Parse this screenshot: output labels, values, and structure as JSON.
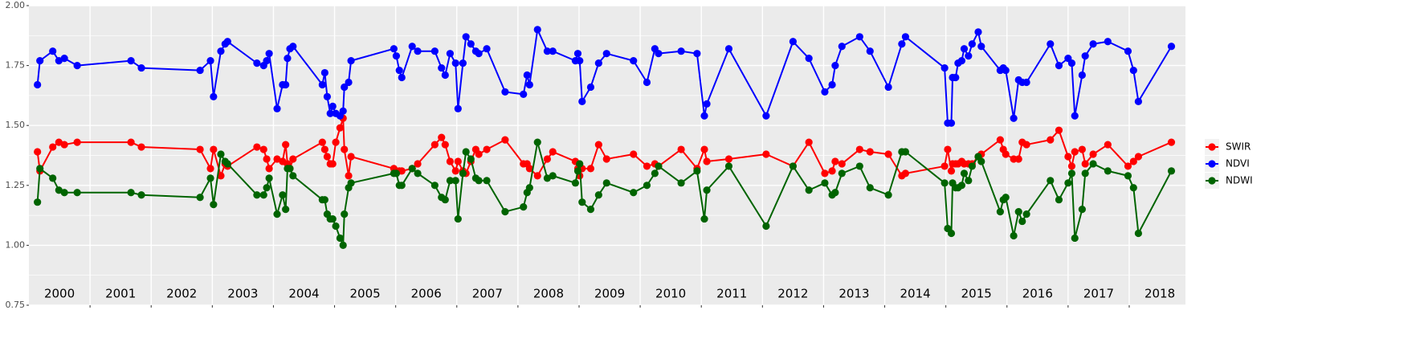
{
  "chart_data": {
    "type": "line",
    "x": [
      2000.14,
      2000.18,
      2000.39,
      2000.49,
      2000.58,
      2000.79,
      2001.67,
      2001.84,
      2002.8,
      2002.97,
      2003.02,
      2003.14,
      2003.21,
      2003.25,
      2003.73,
      2003.84,
      2003.89,
      2003.93,
      2004.06,
      2004.15,
      2004.2,
      2004.23,
      2004.27,
      2004.32,
      2004.8,
      2004.84,
      2004.88,
      2004.93,
      2004.97,
      2005.02,
      2005.09,
      2005.14,
      2005.16,
      2005.23,
      2005.27,
      2005.97,
      2006.01,
      2006.06,
      2006.1,
      2006.27,
      2006.36,
      2006.64,
      2006.75,
      2006.81,
      2006.89,
      2006.98,
      2007.02,
      2007.1,
      2007.15,
      2007.23,
      2007.31,
      2007.36,
      2007.49,
      2007.79,
      2008.09,
      2008.15,
      2008.19,
      2008.32,
      2008.48,
      2008.57,
      2008.94,
      2008.98,
      2009.01,
      2009.05,
      2009.19,
      2009.32,
      2009.45,
      2009.89,
      2010.11,
      2010.24,
      2010.3,
      2010.67,
      2010.93,
      2011.05,
      2011.09,
      2011.45,
      2012.06,
      2012.5,
      2012.76,
      2013.02,
      2013.14,
      2013.19,
      2013.3,
      2013.59,
      2013.76,
      2014.06,
      2014.28,
      2014.34,
      2014.98,
      2015.03,
      2015.09,
      2015.11,
      2015.16,
      2015.2,
      2015.26,
      2015.3,
      2015.37,
      2015.43,
      2015.53,
      2015.58,
      2015.89,
      2015.94,
      2015.98,
      2016.11,
      2016.19,
      2016.25,
      2016.32,
      2016.71,
      2016.85,
      2017.0,
      2017.06,
      2017.11,
      2017.23,
      2017.28,
      2017.41,
      2017.65,
      2017.98,
      2018.07,
      2018.15,
      2018.69
    ],
    "series": [
      {
        "name": "SWIR",
        "color": "#ff0000",
        "values": [
          1.39,
          1.31,
          1.41,
          1.43,
          1.42,
          1.43,
          1.43,
          1.41,
          1.4,
          1.32,
          1.4,
          1.29,
          1.34,
          1.33,
          1.41,
          1.4,
          1.36,
          1.32,
          1.36,
          1.35,
          1.42,
          1.34,
          1.32,
          1.36,
          1.43,
          1.4,
          1.37,
          1.34,
          1.34,
          1.43,
          1.49,
          1.53,
          1.4,
          1.29,
          1.37,
          1.32,
          1.31,
          1.31,
          1.31,
          1.32,
          1.34,
          1.42,
          1.45,
          1.42,
          1.35,
          1.31,
          1.35,
          1.31,
          1.3,
          1.35,
          1.4,
          1.38,
          1.4,
          1.44,
          1.34,
          1.34,
          1.32,
          1.29,
          1.36,
          1.39,
          1.35,
          1.32,
          1.29,
          1.32,
          1.32,
          1.42,
          1.36,
          1.38,
          1.33,
          1.34,
          1.33,
          1.4,
          1.32,
          1.4,
          1.35,
          1.36,
          1.38,
          1.33,
          1.43,
          1.3,
          1.31,
          1.35,
          1.34,
          1.4,
          1.39,
          1.38,
          1.29,
          1.3,
          1.33,
          1.4,
          1.31,
          1.34,
          1.34,
          1.34,
          1.35,
          1.34,
          1.34,
          1.34,
          1.37,
          1.38,
          1.44,
          1.4,
          1.38,
          1.36,
          1.36,
          1.43,
          1.42,
          1.44,
          1.48,
          1.37,
          1.33,
          1.39,
          1.4,
          1.34,
          1.38,
          1.42,
          1.33,
          1.35,
          1.37,
          1.43
        ]
      },
      {
        "name": "NDVI",
        "color": "#0000ff",
        "values": [
          1.67,
          1.77,
          1.81,
          1.77,
          1.78,
          1.75,
          1.77,
          1.74,
          1.73,
          1.77,
          1.62,
          1.81,
          1.84,
          1.85,
          1.76,
          1.75,
          1.77,
          1.8,
          1.57,
          1.67,
          1.67,
          1.78,
          1.82,
          1.83,
          1.67,
          1.72,
          1.62,
          1.55,
          1.58,
          1.55,
          1.54,
          1.56,
          1.66,
          1.68,
          1.77,
          1.82,
          1.79,
          1.73,
          1.7,
          1.83,
          1.81,
          1.81,
          1.74,
          1.71,
          1.8,
          1.76,
          1.57,
          1.76,
          1.87,
          1.84,
          1.81,
          1.8,
          1.82,
          1.64,
          1.63,
          1.71,
          1.67,
          1.9,
          1.81,
          1.81,
          1.77,
          1.8,
          1.77,
          1.6,
          1.66,
          1.76,
          1.8,
          1.77,
          1.68,
          1.82,
          1.8,
          1.81,
          1.8,
          1.54,
          1.59,
          1.82,
          1.54,
          1.85,
          1.78,
          1.64,
          1.67,
          1.75,
          1.83,
          1.87,
          1.81,
          1.66,
          1.84,
          1.87,
          1.74,
          1.51,
          1.51,
          1.7,
          1.7,
          1.76,
          1.77,
          1.82,
          1.79,
          1.84,
          1.89,
          1.83,
          1.73,
          1.74,
          1.73,
          1.53,
          1.69,
          1.68,
          1.68,
          1.84,
          1.75,
          1.78,
          1.76,
          1.54,
          1.71,
          1.79,
          1.84,
          1.85,
          1.81,
          1.73,
          1.6,
          1.83
        ]
      },
      {
        "name": "NDWI",
        "color": "#006400",
        "values": [
          1.18,
          1.32,
          1.28,
          1.23,
          1.22,
          1.22,
          1.22,
          1.21,
          1.2,
          1.28,
          1.17,
          1.38,
          1.35,
          1.34,
          1.21,
          1.21,
          1.24,
          1.28,
          1.13,
          1.21,
          1.15,
          1.32,
          1.32,
          1.29,
          1.19,
          1.19,
          1.13,
          1.11,
          1.11,
          1.08,
          1.03,
          1.0,
          1.13,
          1.24,
          1.26,
          1.3,
          1.3,
          1.25,
          1.25,
          1.32,
          1.3,
          1.25,
          1.2,
          1.19,
          1.27,
          1.27,
          1.11,
          1.3,
          1.39,
          1.36,
          1.28,
          1.27,
          1.27,
          1.14,
          1.16,
          1.22,
          1.24,
          1.43,
          1.28,
          1.29,
          1.26,
          1.31,
          1.34,
          1.18,
          1.15,
          1.21,
          1.26,
          1.22,
          1.25,
          1.3,
          1.33,
          1.26,
          1.31,
          1.11,
          1.23,
          1.33,
          1.08,
          1.33,
          1.23,
          1.26,
          1.21,
          1.22,
          1.3,
          1.33,
          1.24,
          1.21,
          1.39,
          1.39,
          1.26,
          1.07,
          1.05,
          1.26,
          1.24,
          1.24,
          1.25,
          1.3,
          1.27,
          1.33,
          1.37,
          1.35,
          1.14,
          1.19,
          1.2,
          1.04,
          1.14,
          1.1,
          1.13,
          1.27,
          1.19,
          1.26,
          1.3,
          1.03,
          1.15,
          1.3,
          1.34,
          1.31,
          1.29,
          1.24,
          1.05,
          1.31
        ]
      }
    ],
    "xlim": [
      2000,
      2018.92
    ],
    "xticks": [
      2001,
      2002,
      2003,
      2004,
      2005,
      2006,
      2007,
      2008,
      2009,
      2010,
      2011,
      2012,
      2013,
      2014,
      2015,
      2016,
      2017,
      2018
    ],
    "year_labels": [
      2000,
      2001,
      2002,
      2003,
      2004,
      2005,
      2006,
      2007,
      2008,
      2009,
      2010,
      2011,
      2012,
      2013,
      2014,
      2015,
      2016,
      2017,
      2018
    ],
    "ylim": [
      0.75,
      2.0
    ],
    "yticks": [
      0.75,
      {
        "value": 1.0,
        "label": "1.00"
      },
      1.25,
      {
        "value": 1.5,
        "label": "1.50"
      },
      1.75,
      {
        "value": 2.0,
        "label": "2.00"
      }
    ],
    "grid": true,
    "legend": "right"
  }
}
